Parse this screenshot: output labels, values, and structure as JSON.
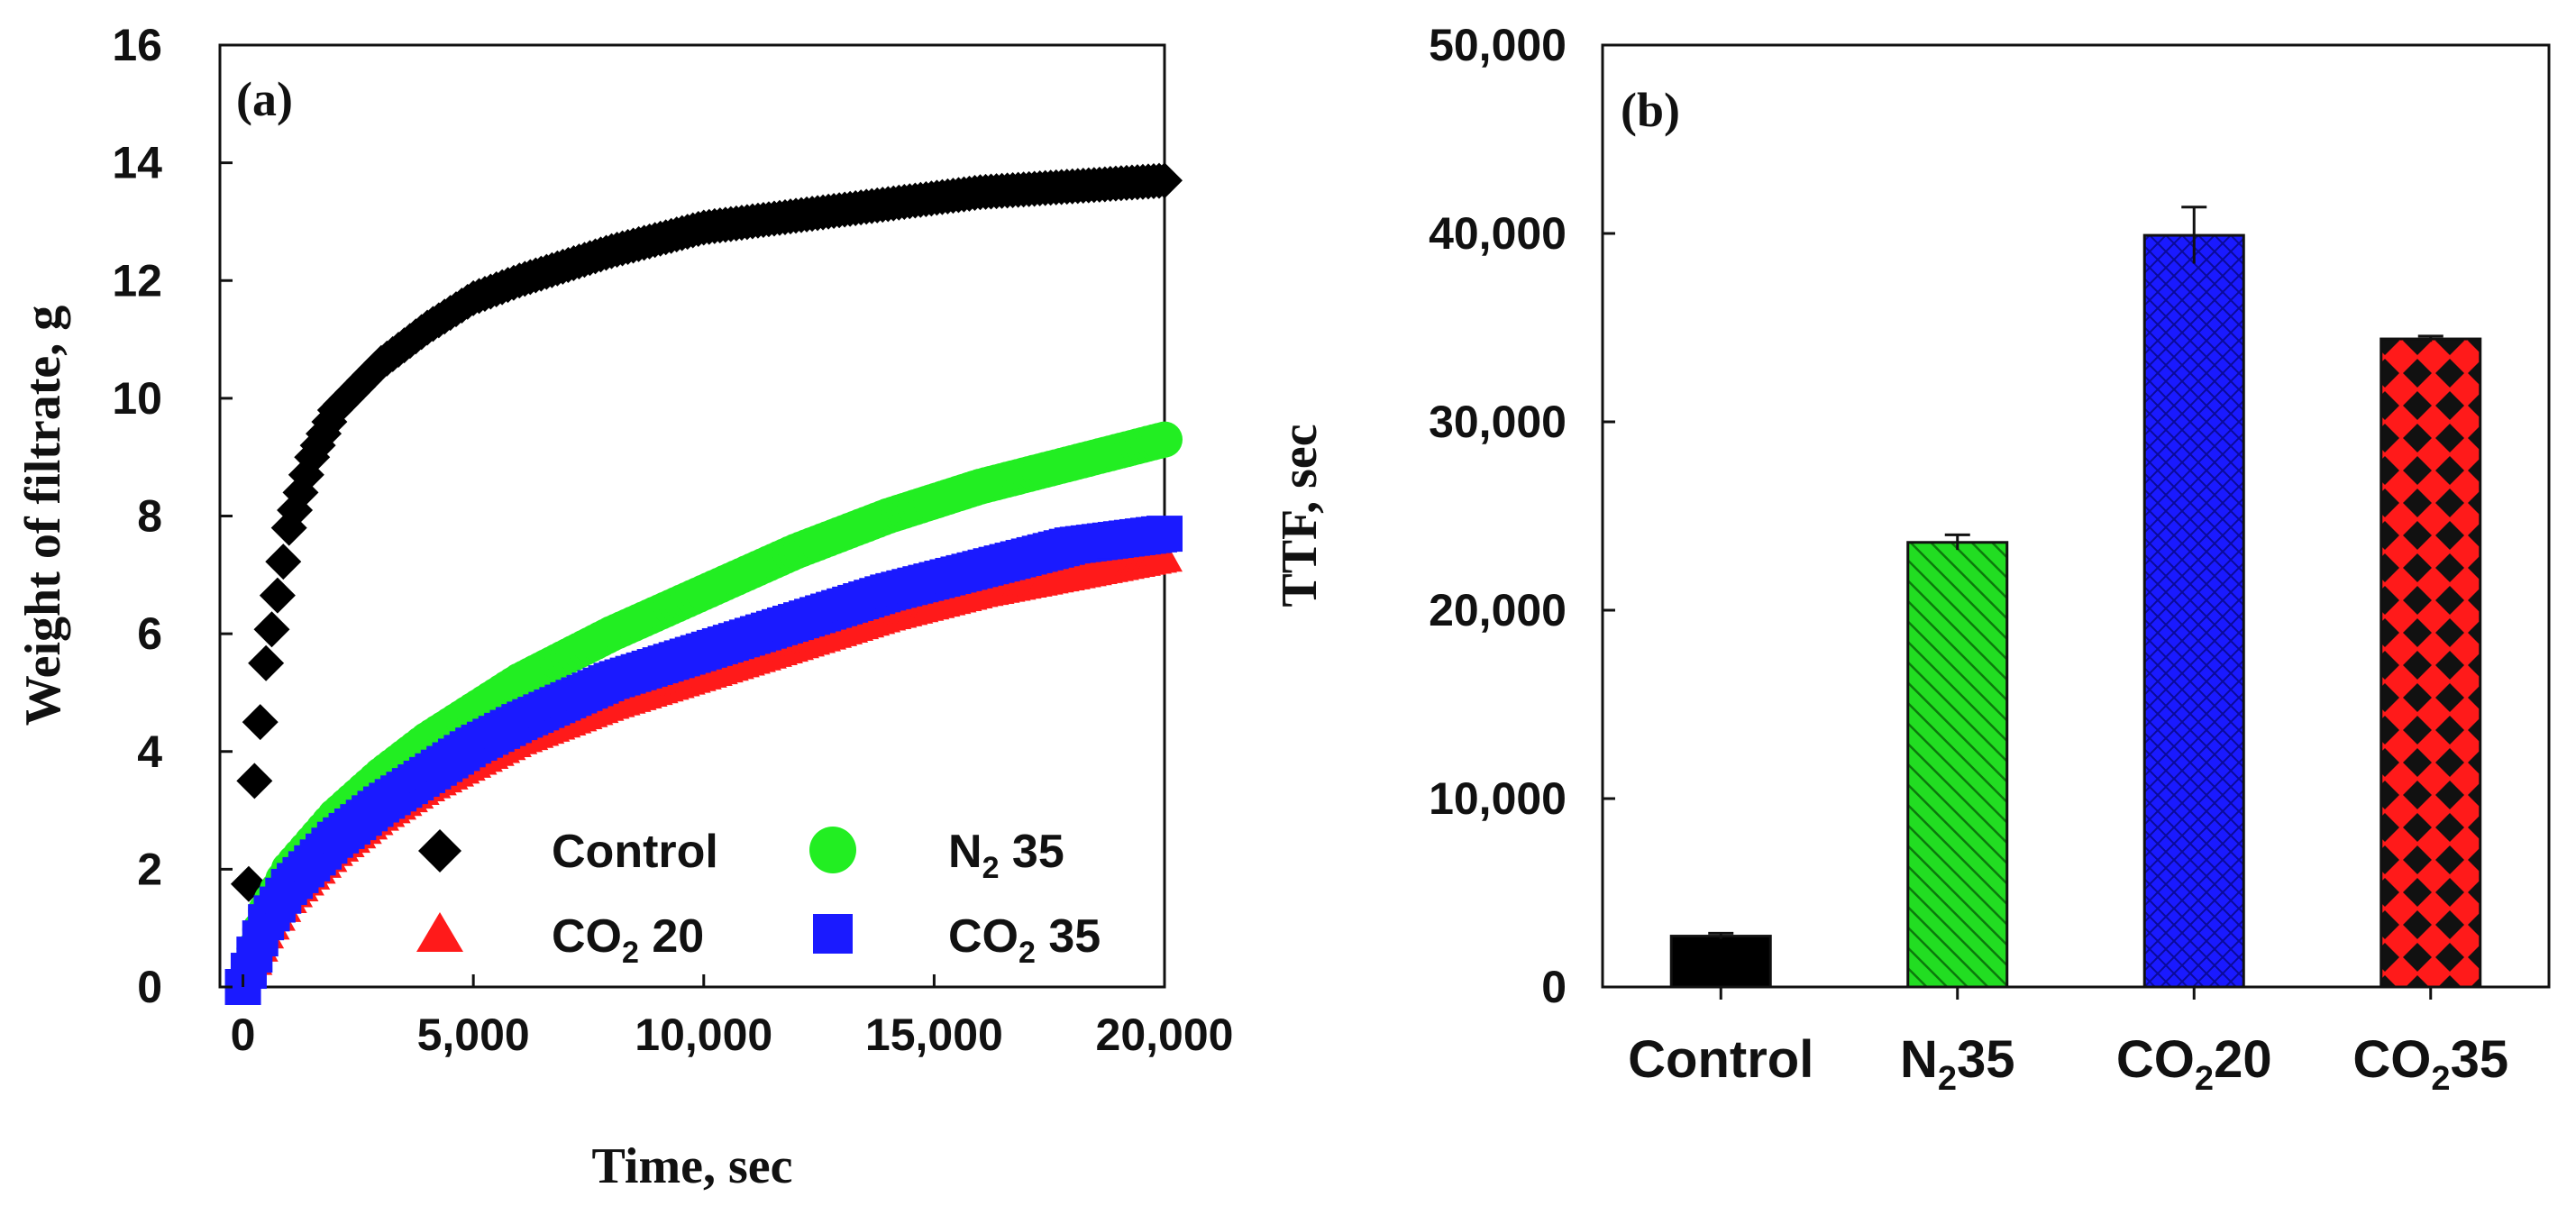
{
  "chart_data": [
    {
      "type": "line",
      "panel_label": "(a)",
      "xlabel": "Time, sec",
      "ylabel": "Weight of filtrate, g",
      "xlim": [
        -500,
        20000
      ],
      "ylim": [
        0,
        16
      ],
      "x_ticks": [
        0,
        5000,
        10000,
        15000,
        20000
      ],
      "x_tick_labels": [
        "0",
        "5,000",
        "10,000",
        "15,000",
        "20,000"
      ],
      "y_ticks": [
        0,
        2,
        4,
        6,
        8,
        10,
        12,
        14,
        16
      ],
      "y_tick_labels": [
        "0",
        "2",
        "4",
        "6",
        "8",
        "10",
        "12",
        "14",
        "16"
      ],
      "series": [
        {
          "name": "Control",
          "legend_main": "Control",
          "legend_sub": "",
          "legend_suffix": "",
          "color": "#000000",
          "marker": "diamond",
          "x": [
            0,
            250,
            500,
            1000,
            1500,
            2000,
            3000,
            4000,
            5000,
            6000,
            8000,
            10000,
            12000,
            14000,
            16000,
            18000,
            20000
          ],
          "y": [
            0,
            3.5,
            5.5,
            7.8,
            9.0,
            9.8,
            10.6,
            11.2,
            11.7,
            12.0,
            12.5,
            12.9,
            13.1,
            13.3,
            13.5,
            13.6,
            13.7
          ]
        },
        {
          "name": "N2 35",
          "legend_main": "N",
          "legend_sub": "2",
          "legend_suffix": " 35",
          "color": "#22ee22",
          "marker": "circle",
          "x": [
            0,
            500,
            1000,
            2000,
            3000,
            4000,
            5000,
            6000,
            8000,
            10000,
            12000,
            14000,
            16000,
            18000,
            20000
          ],
          "y": [
            0,
            1.3,
            2.0,
            2.9,
            3.6,
            4.2,
            4.7,
            5.2,
            6.0,
            6.7,
            7.4,
            8.0,
            8.5,
            8.9,
            9.3
          ]
        },
        {
          "name": "CO2 20",
          "legend_main": "CO",
          "legend_sub": "2",
          "legend_suffix": " 20",
          "color": "#ff1a1a",
          "marker": "triangle",
          "x": [
            0,
            500,
            1000,
            2000,
            3000,
            4000,
            5000,
            6000,
            8000,
            10000,
            12000,
            14000,
            16000,
            18000,
            20000
          ],
          "y": [
            0,
            0.9,
            1.5,
            2.3,
            2.9,
            3.4,
            3.8,
            4.2,
            4.8,
            5.3,
            5.8,
            6.3,
            6.7,
            7.0,
            7.3
          ]
        },
        {
          "name": "CO2 35",
          "legend_main": "CO",
          "legend_sub": "2",
          "legend_suffix": " 35",
          "color": "#1a1aff",
          "marker": "square",
          "x": [
            0,
            500,
            1000,
            2000,
            3000,
            4000,
            5000,
            6000,
            8000,
            10000,
            12000,
            14000,
            16000,
            18000,
            20000
          ],
          "y": [
            0,
            1.1,
            1.7,
            2.5,
            3.1,
            3.6,
            4.1,
            4.5,
            5.2,
            5.7,
            6.2,
            6.7,
            7.1,
            7.5,
            7.7
          ]
        }
      ]
    },
    {
      "type": "bar",
      "panel_label": "(b)",
      "xlabel": "",
      "ylabel": "TTF, sec",
      "ylim": [
        0,
        50000
      ],
      "y_ticks": [
        0,
        10000,
        20000,
        30000,
        40000,
        50000
      ],
      "y_tick_labels": [
        "0",
        "10,000",
        "20,000",
        "30,000",
        "40,000",
        "50,000"
      ],
      "categories": [
        {
          "main": "Control",
          "sub": "",
          "suffix": ""
        },
        {
          "main": "N",
          "sub": "2",
          "suffix": "35"
        },
        {
          "main": "CO",
          "sub": "2",
          "suffix": "20"
        },
        {
          "main": "CO",
          "sub": "2",
          "suffix": "35"
        }
      ],
      "values": [
        2700,
        23600,
        39900,
        34400
      ],
      "errors": [
        150,
        400,
        1500,
        150
      ],
      "colors": [
        "#000000",
        "#22dd22",
        "#1a1aff",
        "#ff1a1a"
      ],
      "patterns": [
        "solid",
        "diagonal-hatch",
        "crosshatch",
        "diamond-check"
      ]
    }
  ]
}
